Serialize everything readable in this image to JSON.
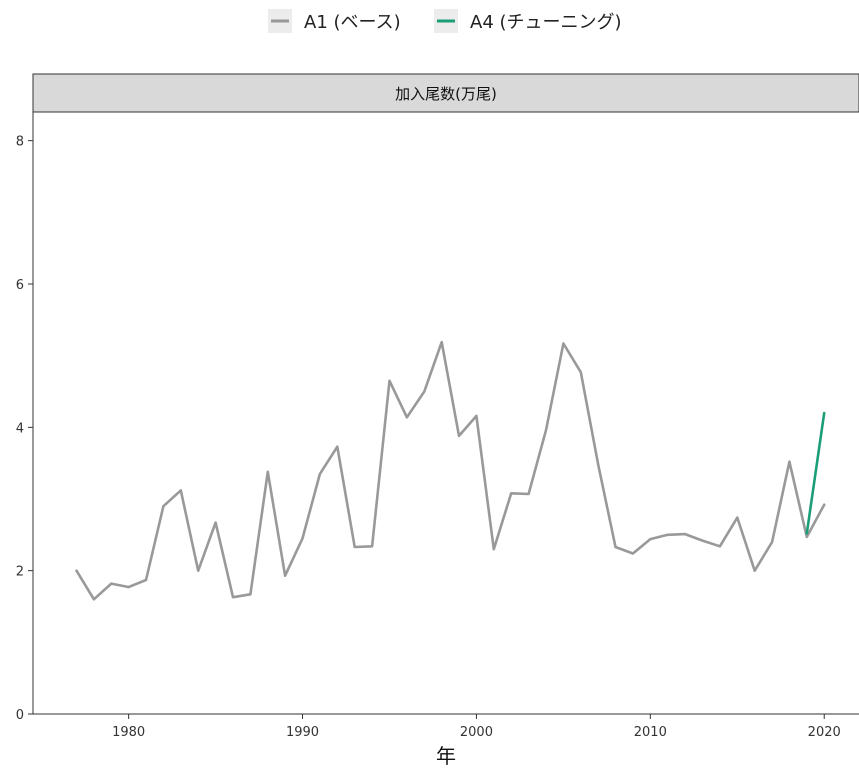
{
  "chart_data": {
    "type": "line",
    "facet_title": "加入尾数(万尾)",
    "xlabel": "年",
    "ylabel": "",
    "xlim": [
      1974.5,
      2022
    ],
    "ylim": [
      0,
      8.4
    ],
    "x_ticks": [
      1980,
      1990,
      2000,
      2010,
      2020
    ],
    "y_ticks": [
      0,
      2,
      4,
      6,
      8
    ],
    "x_tick_labels": [
      "1980",
      "1990",
      "2000",
      "2010",
      "2020"
    ],
    "y_tick_labels": [
      "0",
      "2",
      "4",
      "6",
      "8"
    ],
    "legend_position": "top",
    "grid": false,
    "series": [
      {
        "name": "A1 (ベース)",
        "color": "#999999",
        "x": [
          1977,
          1978,
          1979,
          1980,
          1981,
          1982,
          1983,
          1984,
          1985,
          1986,
          1987,
          1988,
          1989,
          1990,
          1991,
          1992,
          1993,
          1994,
          1995,
          1996,
          1997,
          1998,
          1999,
          2000,
          2001,
          2002,
          2003,
          2004,
          2005,
          2006,
          2007,
          2008,
          2009,
          2010,
          2011,
          2012,
          2013,
          2014,
          2015,
          2016,
          2017,
          2018,
          2019,
          2020
        ],
        "values": [
          2.0,
          1.6,
          1.82,
          1.77,
          1.87,
          2.9,
          3.12,
          2.0,
          2.67,
          1.63,
          1.67,
          3.38,
          1.93,
          2.45,
          3.35,
          3.73,
          2.33,
          2.34,
          4.65,
          4.14,
          4.5,
          5.19,
          3.88,
          4.16,
          2.3,
          3.08,
          3.07,
          3.96,
          5.17,
          4.77,
          3.48,
          2.33,
          2.24,
          2.44,
          2.5,
          2.51,
          2.42,
          2.34,
          2.74,
          2.0,
          2.4,
          3.52,
          2.47,
          2.92
        ]
      },
      {
        "name": "A4 (チューニング)",
        "color": "#1b9e77",
        "x": [
          2019,
          2020
        ],
        "values": [
          2.52,
          4.2
        ]
      }
    ]
  }
}
